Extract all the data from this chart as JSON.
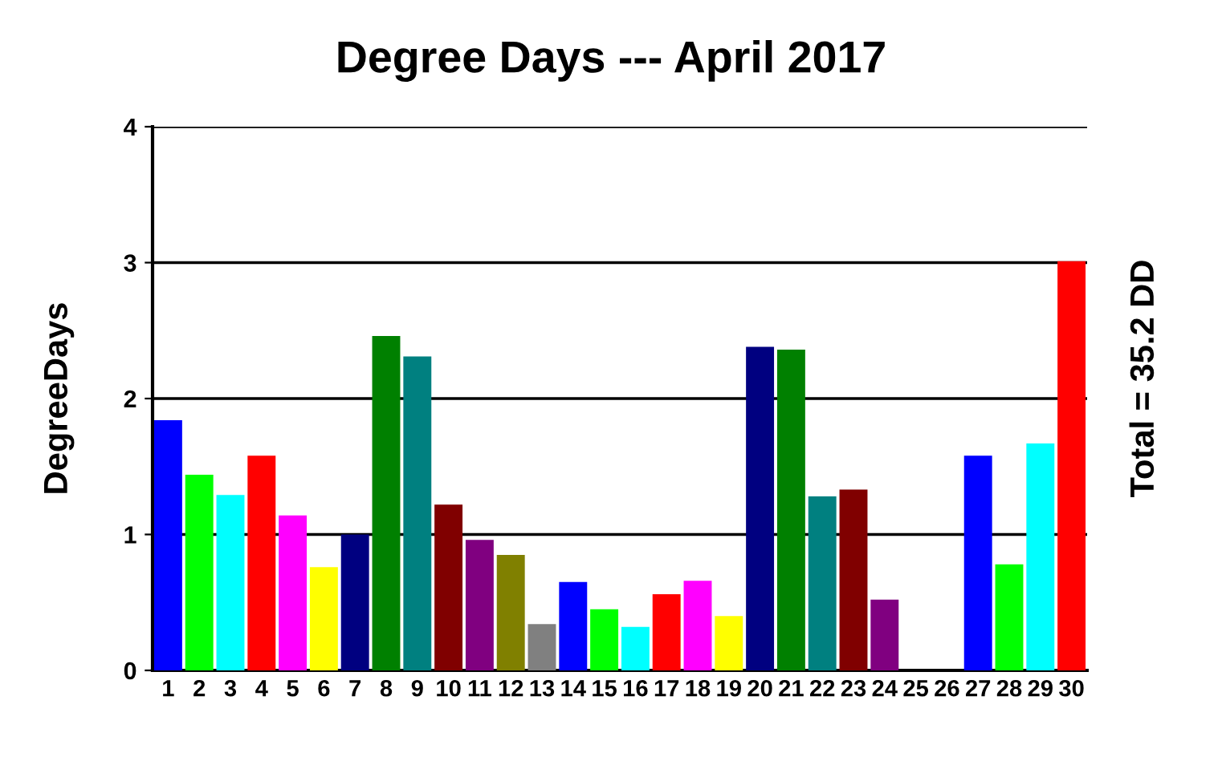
{
  "chart_data": {
    "type": "bar",
    "title": "Degree Days --- April 2017",
    "ylabel": "DegreeDays",
    "categories": [
      "1",
      "2",
      "3",
      "4",
      "5",
      "6",
      "7",
      "8",
      "9",
      "10",
      "11",
      "12",
      "13",
      "14",
      "15",
      "16",
      "17",
      "18",
      "19",
      "20",
      "21",
      "22",
      "23",
      "24",
      "25",
      "26",
      "27",
      "28",
      "29",
      "30"
    ],
    "values": [
      1.84,
      1.44,
      1.29,
      1.58,
      1.14,
      0.76,
      1.0,
      2.46,
      2.31,
      1.22,
      0.96,
      0.85,
      0.34,
      0.65,
      0.45,
      0.32,
      0.56,
      0.66,
      0.4,
      2.38,
      2.36,
      1.28,
      1.33,
      0.52,
      0,
      0,
      1.58,
      0.78,
      1.67,
      3.01
    ],
    "colors": [
      "#0000ff",
      "#00ff00",
      "#00ffff",
      "#ff0000",
      "#ff00ff",
      "#ffff00",
      "#000080",
      "#008000",
      "#008080",
      "#800000",
      "#800080",
      "#808000",
      "#808080",
      "#0000ff",
      "#00ff00",
      "#00ffff",
      "#ff0000",
      "#ff00ff",
      "#ffff00",
      "#000080",
      "#008000",
      "#008080",
      "#800000",
      "#800080",
      "#808080",
      "#0000ff",
      "#0000ff",
      "#00ff00",
      "#00ffff",
      "#ff0000"
    ],
    "ylim": [
      0,
      4
    ],
    "yticks": [
      0,
      1,
      2,
      3,
      4
    ],
    "grid": "y",
    "annotations": [
      "Total = 35.2 DD"
    ]
  }
}
